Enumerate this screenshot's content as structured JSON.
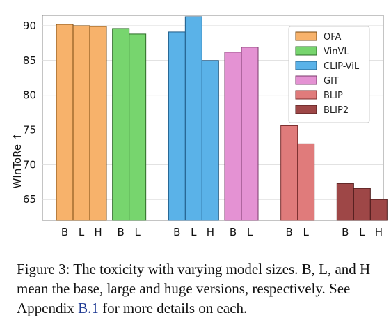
{
  "chart_data": {
    "type": "bar",
    "ylabel": "WInToRe ↑",
    "ylim": [
      62,
      91.5
    ],
    "yticks": [
      65,
      70,
      75,
      80,
      85,
      90
    ],
    "grid": true,
    "legend_position": "top-right",
    "groups": [
      {
        "name": "OFA",
        "color": "#f7b26b",
        "edge": "#7a4a10",
        "sizes": [
          "B",
          "L",
          "H"
        ],
        "values": [
          90.2,
          90.0,
          89.9
        ]
      },
      {
        "name": "VinVL",
        "color": "#77d56e",
        "edge": "#2e6b28",
        "sizes": [
          "B",
          "L"
        ],
        "values": [
          89.6,
          88.8
        ]
      },
      {
        "name": "CLIP-ViL",
        "color": "#5ab2e8",
        "edge": "#1f5a85",
        "sizes": [
          "B",
          "L",
          "H"
        ],
        "values": [
          89.1,
          91.3,
          85.0
        ]
      },
      {
        "name": "GIT",
        "color": "#e492d3",
        "edge": "#7a3a6b",
        "sizes": [
          "B",
          "L"
        ],
        "values": [
          86.2,
          86.9
        ]
      },
      {
        "name": "BLIP",
        "color": "#e07b7b",
        "edge": "#7a2e2e",
        "sizes": [
          "B",
          "L"
        ],
        "values": [
          75.6,
          73.0
        ]
      },
      {
        "name": "BLIP2",
        "color": "#9e4747",
        "edge": "#4a1a1a",
        "sizes": [
          "B",
          "L",
          "H"
        ],
        "values": [
          67.3,
          66.6,
          65.0
        ]
      }
    ]
  },
  "caption": {
    "text_before": "Figure 3: The toxicity with varying model sizes. B, L, and H mean the base, large and huge versions, respectively. See Appendix ",
    "ref": "B.1",
    "text_after": " for more details on each."
  }
}
